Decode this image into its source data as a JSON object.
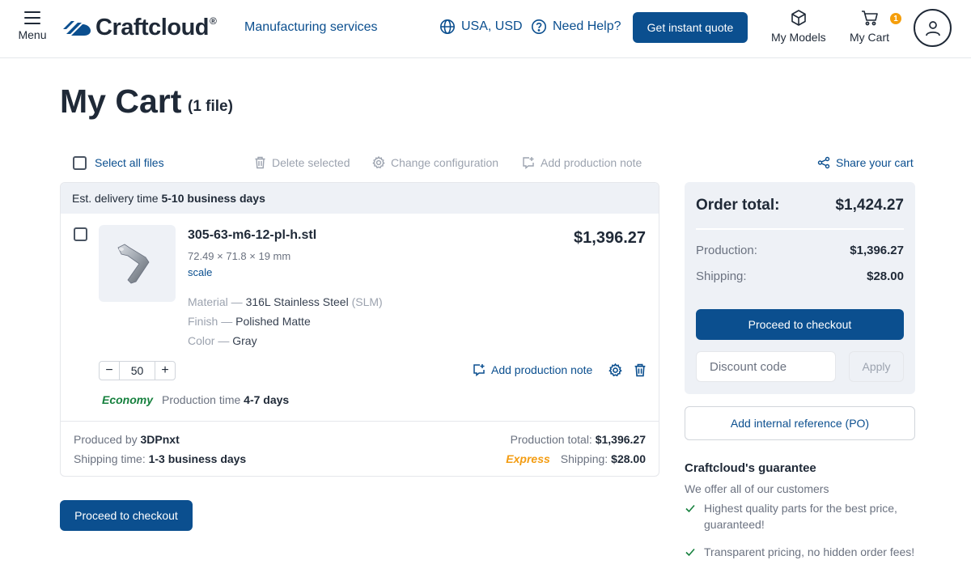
{
  "header": {
    "menu_label": "Menu",
    "logo_text": "Craftcloud",
    "logo_reg": "®",
    "manufacturing_link": "Manufacturing services",
    "region": "USA, USD",
    "help": "Need Help?",
    "quote_button": "Get instant quote",
    "my_models": "My Models",
    "my_cart": "My Cart",
    "cart_count": "1"
  },
  "page": {
    "title": "My Cart",
    "file_count": "(1 file)"
  },
  "toolbar": {
    "select_all": "Select all files",
    "delete_selected": "Delete selected",
    "change_config": "Change configuration",
    "add_note": "Add production note",
    "share": "Share your cart"
  },
  "cart": {
    "delivery_prefix": "Est. delivery time",
    "delivery_value": "5-10 business days",
    "item": {
      "filename": "305-63-m6-12-pl-h.stl",
      "dimensions": "72.49 × 71.8 × 19 mm",
      "scale": "scale",
      "price": "$1,396.27",
      "material_label": "Material — ",
      "material_value": "316L Stainless Steel",
      "material_process": "(SLM)",
      "finish_label": "Finish — ",
      "finish_value": "Polished Matte",
      "color_label": "Color — ",
      "color_value": "Gray",
      "quantity": "50",
      "minus": "−",
      "plus": "+",
      "add_note": "Add production note",
      "speed": "Economy",
      "production_time_label": "Production time",
      "production_time_value": "4-7 days"
    },
    "vendor": {
      "produced_by_label": "Produced by",
      "produced_by_value": "3DPnxt",
      "shipping_time_label": "Shipping time:",
      "shipping_time_value": "1-3 business days",
      "production_total_label": "Production total:",
      "production_total_value": "$1,396.27",
      "shipping_speed": "Express",
      "shipping_label": "Shipping:",
      "shipping_value": "$28.00"
    },
    "checkout_button": "Proceed to checkout"
  },
  "summary": {
    "order_total_label": "Order total:",
    "order_total_value": "$1,424.27",
    "production_label": "Production:",
    "production_value": "$1,396.27",
    "shipping_label": "Shipping:",
    "shipping_value": "$28.00",
    "checkout_button": "Proceed to checkout",
    "discount_placeholder": "Discount code",
    "apply_button": "Apply",
    "po_button": "Add internal reference (PO)"
  },
  "guarantee": {
    "title": "Craftcloud's guarantee",
    "subtitle": "We offer all of our customers",
    "items": [
      "Highest quality parts for the best price, guaranteed!",
      "Transparent pricing, no hidden order fees!"
    ]
  },
  "colors": {
    "primary": "#0b4f8f",
    "economy": "#15803d",
    "express": "#f39c12",
    "badge": "#f59e0b",
    "panel_bg": "#eef1f6"
  }
}
